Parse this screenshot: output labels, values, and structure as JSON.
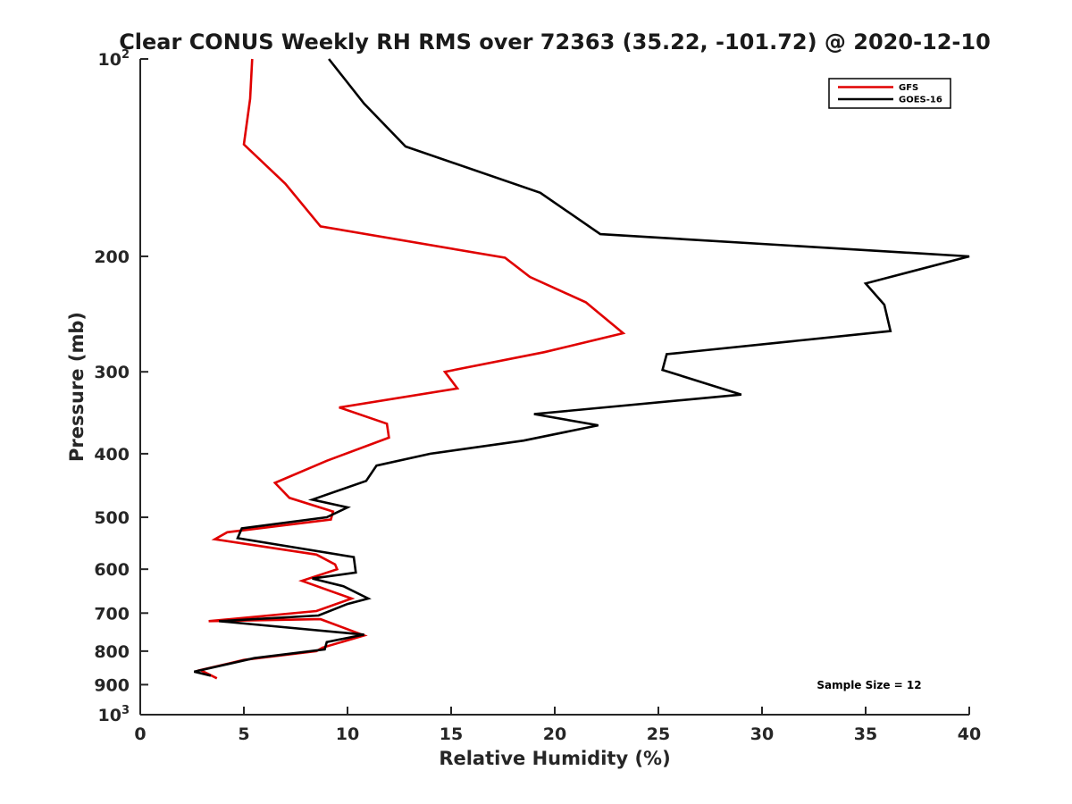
{
  "chart_data": {
    "type": "line",
    "orientation": "profile",
    "title": "Clear CONUS Weekly RH RMS over 72363 (35.22, -101.72) @ 2020-12-10",
    "xlabel": "Relative Humidity (%)",
    "ylabel": "Pressure (mb)",
    "xlim": [
      0,
      40
    ],
    "ylim": [
      100,
      1000
    ],
    "yscale": "log",
    "yreversed": true,
    "xticks": [
      0,
      5,
      10,
      15,
      20,
      25,
      30,
      35,
      40
    ],
    "xtick_labels": [
      "0",
      "5",
      "10",
      "15",
      "20",
      "25",
      "30",
      "35",
      "40"
    ],
    "yticks": [
      {
        "value": 100,
        "base": "10",
        "exp": "2"
      },
      {
        "value": 200,
        "label": "200"
      },
      {
        "value": 300,
        "label": "300"
      },
      {
        "value": 400,
        "label": "400"
      },
      {
        "value": 500,
        "label": "500"
      },
      {
        "value": 600,
        "label": "600"
      },
      {
        "value": 700,
        "label": "700"
      },
      {
        "value": 800,
        "label": "800"
      },
      {
        "value": 900,
        "label": "900"
      },
      {
        "value": 1000,
        "base": "10",
        "exp": "3"
      }
    ],
    "legend_position": "top-right",
    "series": [
      {
        "name": "GFS",
        "color": "#e00000",
        "points": [
          [
            5.4,
            100
          ],
          [
            5.3,
            115
          ],
          [
            5.0,
            135
          ],
          [
            7.0,
            155
          ],
          [
            8.7,
            180
          ],
          [
            17.6,
            201
          ],
          [
            18.8,
            215
          ],
          [
            21.5,
            235
          ],
          [
            23.3,
            262
          ],
          [
            19.5,
            280
          ],
          [
            14.7,
            300
          ],
          [
            15.3,
            318
          ],
          [
            9.6,
            340
          ],
          [
            11.9,
            360
          ],
          [
            12.0,
            378
          ],
          [
            9.0,
            410
          ],
          [
            6.5,
            443
          ],
          [
            7.2,
            467
          ],
          [
            9.3,
            490
          ],
          [
            9.2,
            504
          ],
          [
            4.2,
            527
          ],
          [
            3.6,
            540
          ],
          [
            8.5,
            570
          ],
          [
            9.4,
            590
          ],
          [
            9.5,
            600
          ],
          [
            7.8,
            625
          ],
          [
            10.2,
            665
          ],
          [
            8.5,
            695
          ],
          [
            3.3,
            720
          ],
          [
            8.7,
            715
          ],
          [
            10.8,
            757
          ],
          [
            8.8,
            790
          ],
          [
            8.5,
            800
          ],
          [
            5.0,
            825
          ],
          [
            2.9,
            855
          ],
          [
            3.7,
            880
          ]
        ]
      },
      {
        "name": "GOES-16",
        "color": "#000000",
        "points": [
          [
            9.1,
            100
          ],
          [
            10.8,
            117
          ],
          [
            12.8,
            136
          ],
          [
            19.3,
            160
          ],
          [
            22.2,
            185
          ],
          [
            40.0,
            200
          ],
          [
            35.0,
            220
          ],
          [
            35.9,
            237
          ],
          [
            36.2,
            260
          ],
          [
            25.4,
            282
          ],
          [
            25.2,
            298
          ],
          [
            29.0,
            325
          ],
          [
            19.0,
            348
          ],
          [
            22.1,
            362
          ],
          [
            18.5,
            382
          ],
          [
            14.0,
            400
          ],
          [
            11.4,
            417
          ],
          [
            10.9,
            440
          ],
          [
            8.3,
            470
          ],
          [
            10.0,
            483
          ],
          [
            9.0,
            500
          ],
          [
            4.9,
            520
          ],
          [
            4.7,
            538
          ],
          [
            10.3,
            575
          ],
          [
            10.4,
            607
          ],
          [
            8.3,
            620
          ],
          [
            9.8,
            637
          ],
          [
            11.0,
            665
          ],
          [
            10.0,
            678
          ],
          [
            8.6,
            706
          ],
          [
            3.8,
            720
          ],
          [
            10.8,
            755
          ],
          [
            9.0,
            775
          ],
          [
            8.9,
            795
          ],
          [
            5.5,
            820
          ],
          [
            2.6,
            860
          ],
          [
            3.4,
            872
          ]
        ]
      }
    ],
    "annotation": "Sample Size = 12"
  }
}
